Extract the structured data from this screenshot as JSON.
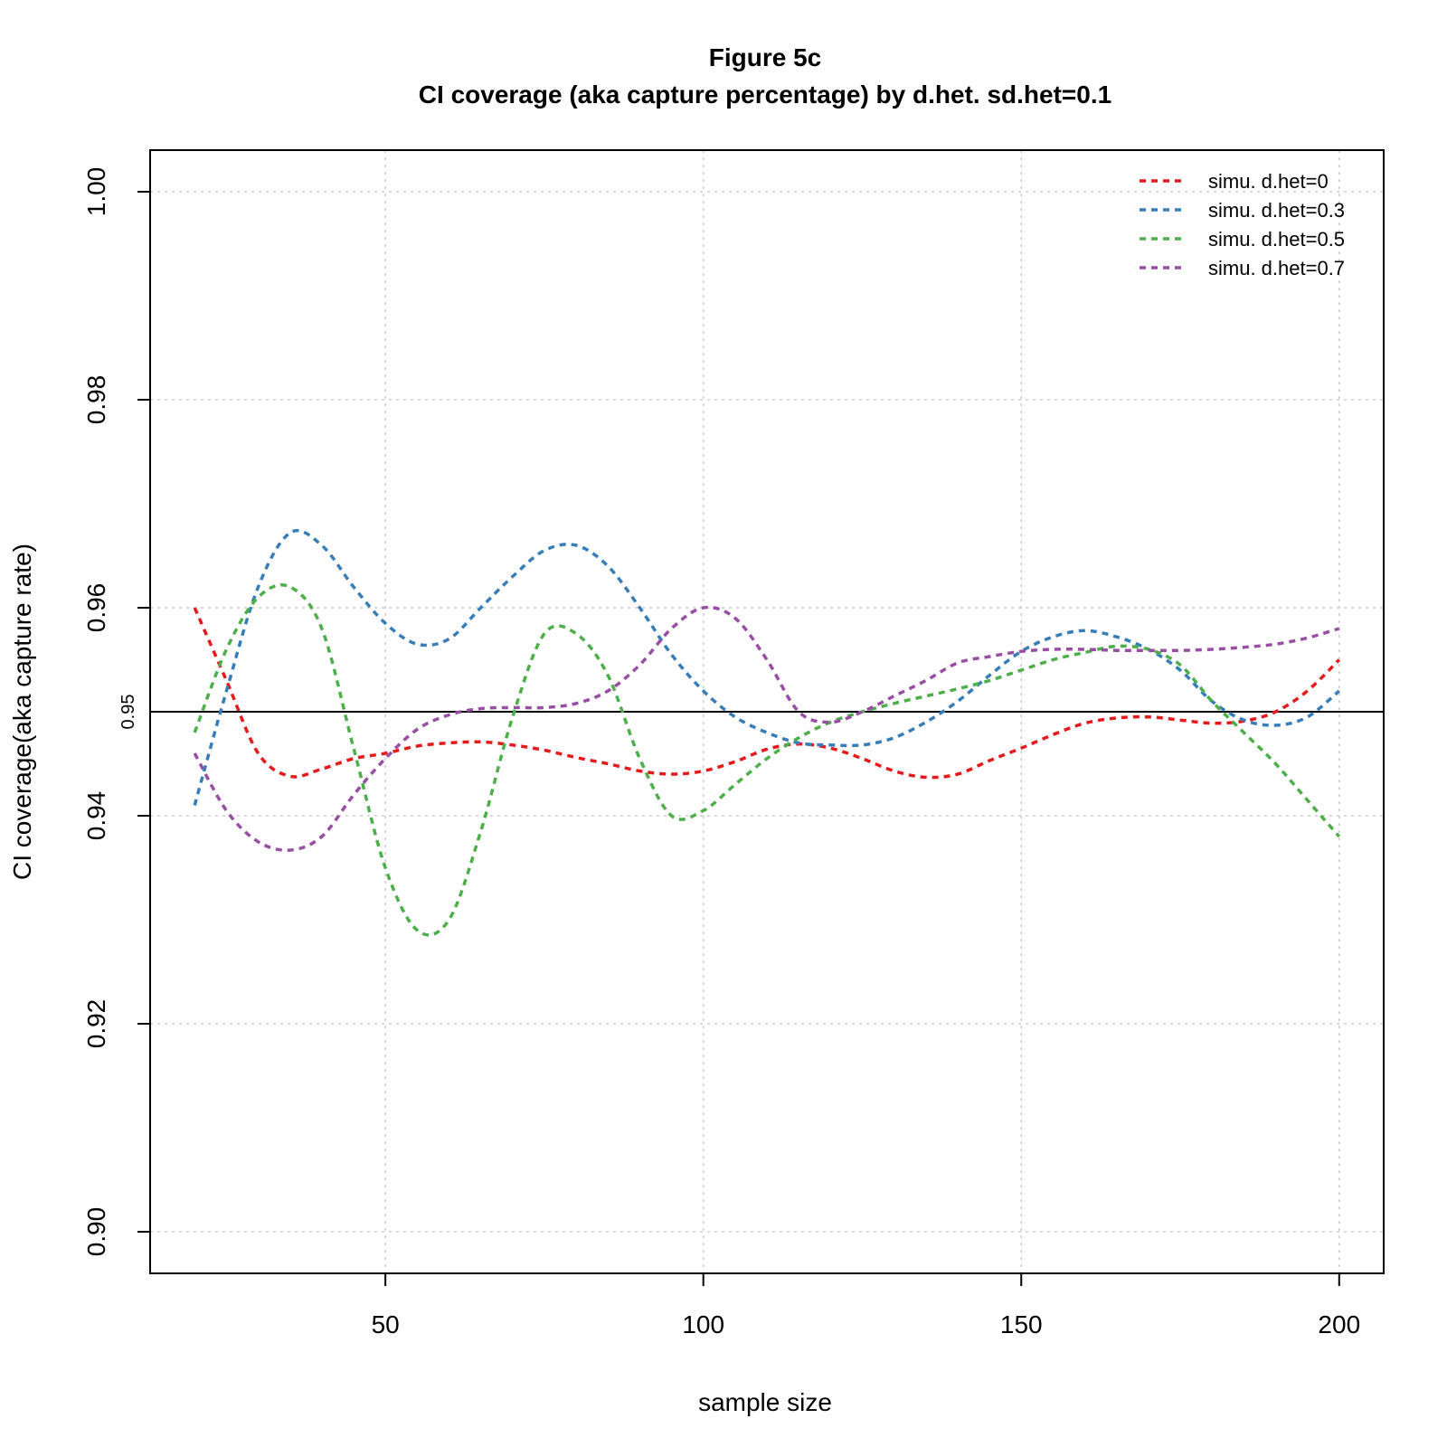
{
  "chart_data": {
    "type": "line",
    "title": "Figure 5c",
    "subtitle": "CI coverage (aka capture percentage) by d.het. sd.het=0.1",
    "xlabel": "sample size",
    "ylabel": "CI coverage(aka capture rate)",
    "xlim": [
      13,
      207
    ],
    "ylim": [
      0.896,
      1.004
    ],
    "x_ticks": [
      50,
      100,
      150,
      200
    ],
    "y_ticks": [
      0.9,
      0.92,
      0.94,
      0.96,
      0.98,
      1.0
    ],
    "x_tick_labels": [
      "50",
      "100",
      "150",
      "200"
    ],
    "y_tick_labels": [
      "0.90",
      "0.92",
      "0.94",
      "0.96",
      "0.98",
      "1.00"
    ],
    "reference_line": {
      "y": 0.95,
      "label": "0.95",
      "color": "#000000"
    },
    "grid": true,
    "line_style": "dashed",
    "legend_position": "top-right",
    "x": [
      20,
      25,
      30,
      35,
      40,
      45,
      50,
      55,
      60,
      65,
      70,
      75,
      80,
      85,
      90,
      95,
      100,
      105,
      110,
      115,
      120,
      125,
      130,
      135,
      140,
      145,
      150,
      155,
      160,
      165,
      170,
      175,
      180,
      185,
      190,
      195,
      200
    ],
    "series": [
      {
        "name": "simu. d.het=0",
        "color": "#E41A1C",
        "values": [
          0.96,
          0.953,
          0.946,
          0.9438,
          0.9445,
          0.9455,
          0.946,
          0.9467,
          0.947,
          0.9471,
          0.9468,
          0.9463,
          0.9456,
          0.945,
          0.9443,
          0.944,
          0.9443,
          0.9452,
          0.9464,
          0.9469,
          0.9465,
          0.9455,
          0.9443,
          0.9437,
          0.944,
          0.9453,
          0.9465,
          0.9478,
          0.9489,
          0.9494,
          0.9495,
          0.9492,
          0.9489,
          0.9491,
          0.95,
          0.952,
          0.955
        ]
      },
      {
        "name": "simu. d.het=0.3",
        "color": "#377EB8",
        "values": [
          0.941,
          0.952,
          0.962,
          0.9672,
          0.966,
          0.962,
          0.9585,
          0.9565,
          0.957,
          0.96,
          0.963,
          0.9655,
          0.966,
          0.964,
          0.96,
          0.9555,
          0.952,
          0.9495,
          0.948,
          0.947,
          0.9468,
          0.9468,
          0.9475,
          0.949,
          0.951,
          0.9535,
          0.9558,
          0.9572,
          0.9578,
          0.9572,
          0.956,
          0.954,
          0.951,
          0.9492,
          0.9487,
          0.9495,
          0.952
        ]
      },
      {
        "name": "simu. d.het=0.5",
        "color": "#4DAF4A",
        "values": [
          0.948,
          0.956,
          0.961,
          0.962,
          0.958,
          0.9465,
          0.935,
          0.929,
          0.93,
          0.9385,
          0.9495,
          0.9575,
          0.9575,
          0.9535,
          0.9455,
          0.94,
          0.9405,
          0.943,
          0.9455,
          0.9475,
          0.949,
          0.95,
          0.9508,
          0.9515,
          0.9522,
          0.953,
          0.954,
          0.955,
          0.9557,
          0.9563,
          0.956,
          0.9545,
          0.951,
          0.948,
          0.945,
          0.9415,
          0.938
        ]
      },
      {
        "name": "simu. d.het=0.7",
        "color": "#984EA3",
        "values": [
          0.946,
          0.9405,
          0.9375,
          0.9367,
          0.938,
          0.942,
          0.9455,
          0.9483,
          0.9497,
          0.9503,
          0.9504,
          0.9504,
          0.9508,
          0.952,
          0.9545,
          0.958,
          0.96,
          0.959,
          0.955,
          0.95,
          0.949,
          0.95,
          0.9515,
          0.953,
          0.9547,
          0.9553,
          0.9558,
          0.956,
          0.956,
          0.9559,
          0.9559,
          0.9559,
          0.956,
          0.9562,
          0.9565,
          0.9571,
          0.958
        ]
      }
    ]
  }
}
